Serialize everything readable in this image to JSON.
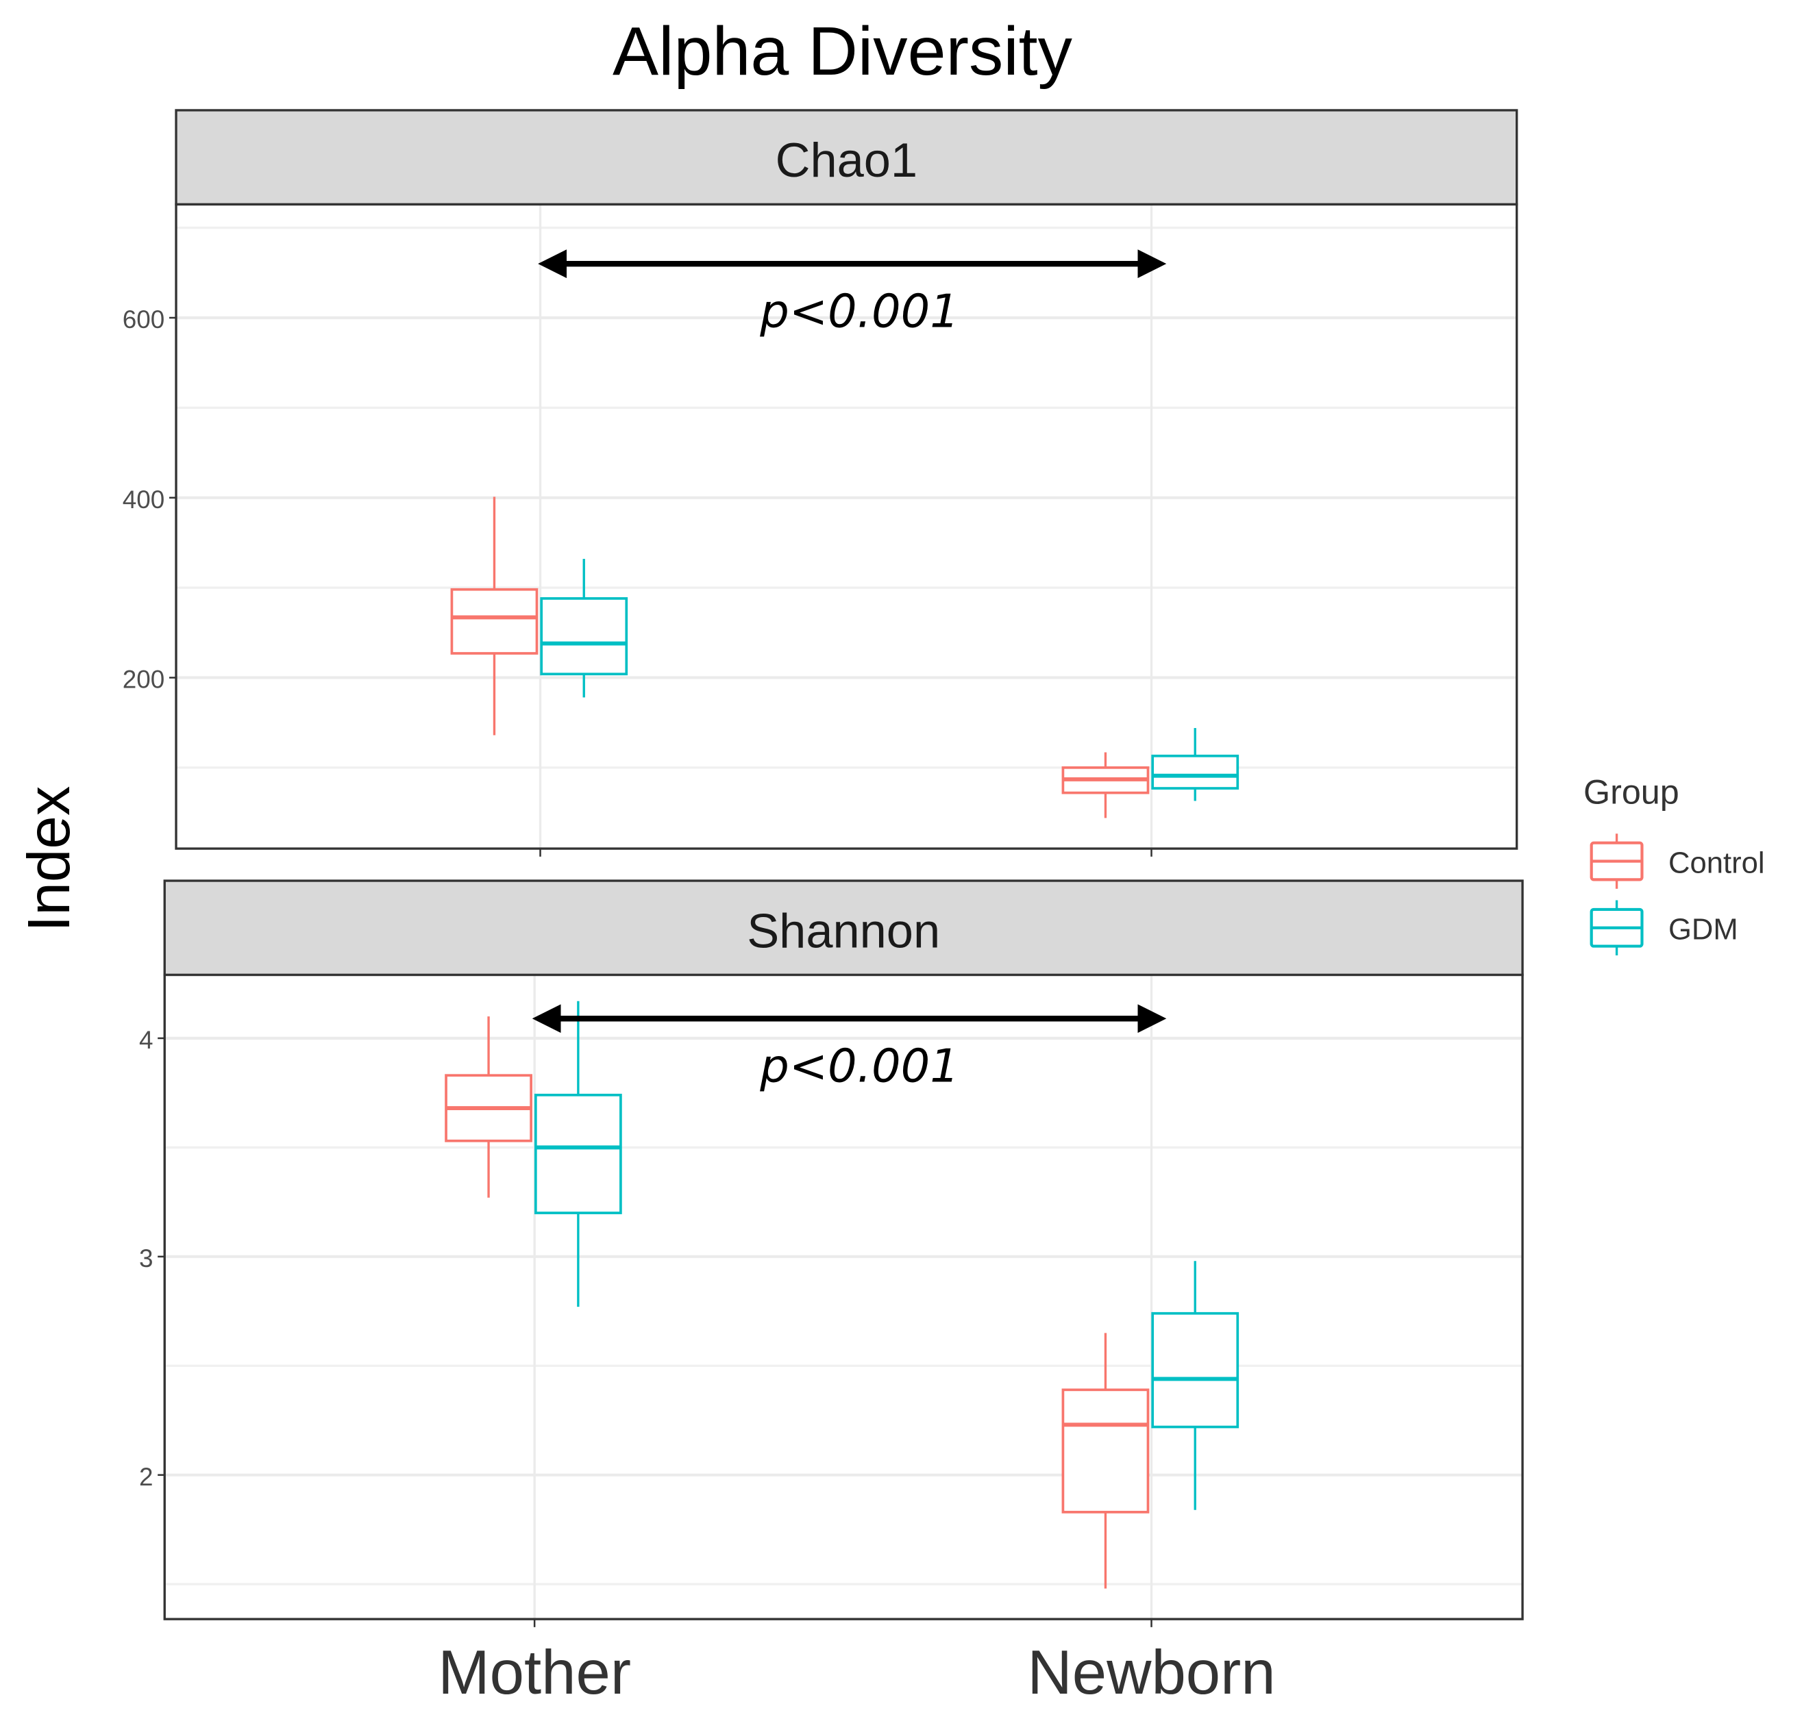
{
  "chart_data": {
    "type": "box",
    "title": "Alpha Diversity",
    "ylabel": "Index",
    "categories": [
      "Mother",
      "Newborn"
    ],
    "legend": {
      "title": "Group",
      "position": "right",
      "entries": [
        {
          "name": "Control",
          "color": "#F8766D"
        },
        {
          "name": "GDM",
          "color": "#00BFC4"
        }
      ]
    },
    "panels": [
      {
        "strip": "Chao1",
        "ylim": [
          10,
          726
        ],
        "ticks": [
          200,
          400,
          600
        ],
        "tick_labels": [
          "200",
          "400",
          "600"
        ],
        "minor": [
          100,
          300,
          500,
          700
        ],
        "annotation": {
          "from": "Mother",
          "to": "Newborn",
          "label": "p<0.001",
          "y": 660
        },
        "series": [
          {
            "name": "Control",
            "boxes": [
              {
                "category": "Mother",
                "min": 136,
                "q1": 227,
                "median": 267,
                "q3": 298,
                "max": 401
              },
              {
                "category": "Newborn",
                "min": 44,
                "q1": 72,
                "median": 87,
                "q3": 100,
                "max": 117
              }
            ]
          },
          {
            "name": "GDM",
            "boxes": [
              {
                "category": "Mother",
                "min": 178,
                "q1": 204,
                "median": 238,
                "q3": 288,
                "max": 332
              },
              {
                "category": "Newborn",
                "min": 63,
                "q1": 77,
                "median": 91,
                "q3": 113,
                "max": 144
              }
            ]
          }
        ]
      },
      {
        "strip": "Shannon",
        "ylim": [
          1.34,
          4.29
        ],
        "ticks": [
          2,
          3,
          4
        ],
        "tick_labels": [
          "2",
          "3",
          "4"
        ],
        "minor": [
          1.5,
          2.5,
          3.5
        ],
        "annotation": {
          "from": "Mother",
          "to": "Newborn",
          "label": "p<0.001",
          "y": 4.09
        },
        "series": [
          {
            "name": "Control",
            "boxes": [
              {
                "category": "Mother",
                "min": 3.27,
                "q1": 3.53,
                "median": 3.68,
                "q3": 3.83,
                "max": 4.1
              },
              {
                "category": "Newborn",
                "min": 1.48,
                "q1": 1.83,
                "median": 2.23,
                "q3": 2.39,
                "max": 2.65
              }
            ]
          },
          {
            "name": "GDM",
            "boxes": [
              {
                "category": "Mother",
                "min": 2.77,
                "q1": 3.2,
                "median": 3.5,
                "q3": 3.74,
                "max": 4.17
              },
              {
                "category": "Newborn",
                "min": 1.84,
                "q1": 2.22,
                "median": 2.44,
                "q3": 2.74,
                "max": 2.98
              }
            ]
          }
        ]
      }
    ]
  }
}
